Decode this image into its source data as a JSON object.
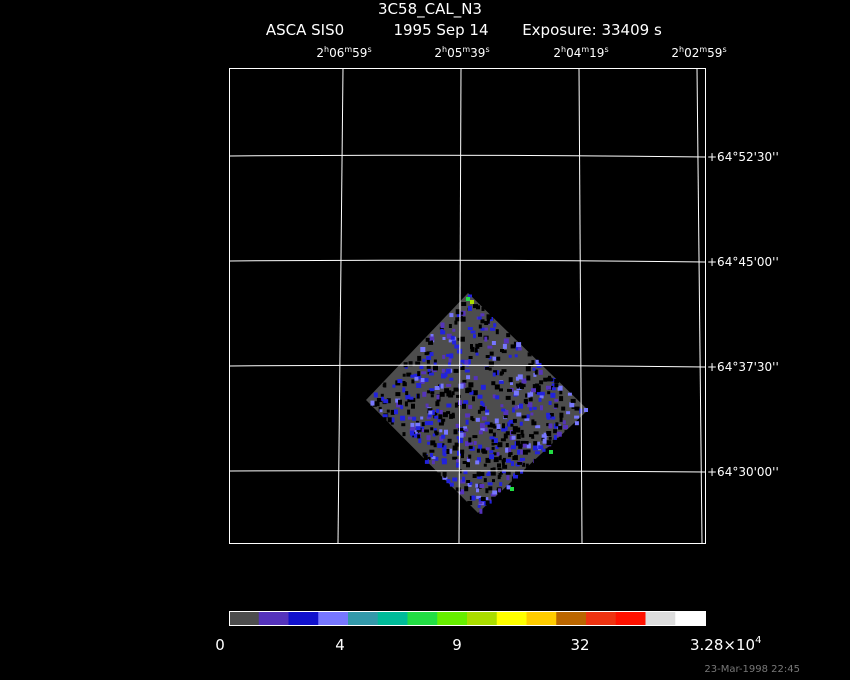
{
  "header": {
    "title": "3C58_CAL_N3",
    "instrument": "ASCA SIS0",
    "date": "1995 Sep 14",
    "exposure": "Exposure: 33409 s"
  },
  "ra_labels": [
    [
      "2",
      "h",
      "06",
      "m",
      "59",
      "s"
    ],
    [
      "2",
      "h",
      "05",
      "m",
      "39",
      "s"
    ],
    [
      "2",
      "h",
      "04",
      "m",
      "19",
      "s"
    ],
    [
      "2",
      "h",
      "02",
      "m",
      "59",
      "s"
    ]
  ],
  "dec_labels": [
    "+64°52'30''",
    "+64°45'00''",
    "+64°37'30''",
    "+64°30'00''"
  ],
  "colorbar": {
    "colors": [
      "#4d4d4d",
      "#5533bb",
      "#1111cc",
      "#7777ff",
      "#3399aa",
      "#00bb99",
      "#22dd44",
      "#66ee00",
      "#aadd00",
      "#ffff00",
      "#ffcc00",
      "#bb6600",
      "#ee3311",
      "#ff1100",
      "#dddddd",
      "#ffffff"
    ],
    "labels": [
      "0",
      "4",
      "9",
      "32"
    ],
    "max_label": {
      "mantissa": "3.28×10",
      "exponent": "4"
    }
  },
  "footer": "23-Mar-1998 22:45"
}
